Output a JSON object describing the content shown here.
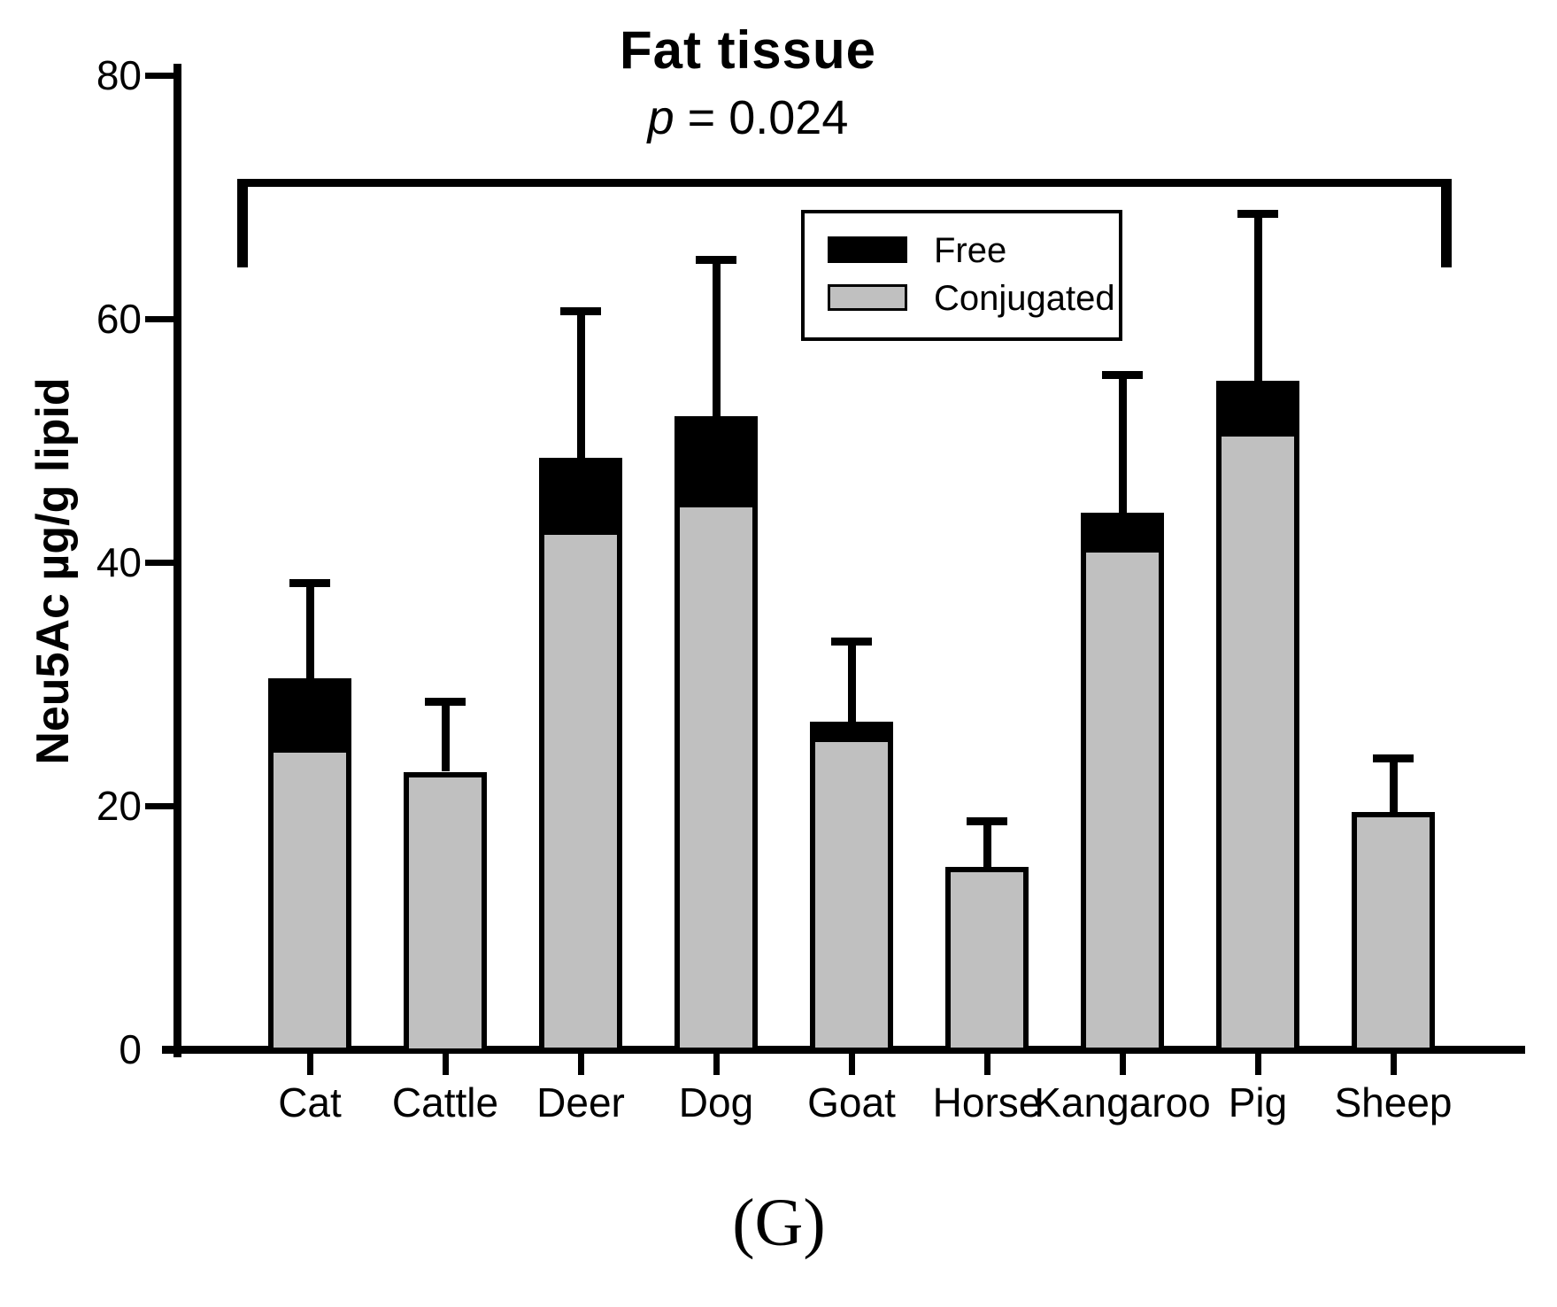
{
  "title": "Fat tissue",
  "subtitle": {
    "p": "p",
    "rest": " = 0.024"
  },
  "caption": "(G)",
  "legend": {
    "items": [
      {
        "label": "Free",
        "color": "#000000"
      },
      {
        "label": "Conjugated",
        "color": "#C0C0C0"
      }
    ],
    "position": "upper center"
  },
  "colors": {
    "free": "#000000",
    "conjugated": "#C0C0C0",
    "axis": "#000000",
    "background": "#FFFFFF"
  },
  "chart_data": {
    "type": "bar",
    "stacked": true,
    "title": "Fat tissue",
    "annotation": "p = 0.024",
    "xlabel": "",
    "ylabel": "Neu5Ac µg/g lipid",
    "ylim": [
      0,
      80
    ],
    "yticks": [
      0,
      20,
      40,
      60,
      80
    ],
    "grid": false,
    "categories": [
      "Cat",
      "Cattle",
      "Deer",
      "Dog",
      "Goat",
      "Horse",
      "Kangaroo",
      "Pig",
      "Sheep"
    ],
    "series": [
      {
        "name": "Conjugated",
        "color": "#C0C0C0",
        "values": [
          24.4,
          22.8,
          42.3,
          44.5,
          25.2,
          15.0,
          40.8,
          50.3,
          19.5
        ]
      },
      {
        "name": "Free",
        "color": "#000000",
        "values": [
          6.1,
          0,
          6.3,
          7.5,
          1.7,
          0,
          3.3,
          4.6,
          0
        ]
      }
    ],
    "totals": [
      30.5,
      22.8,
      48.6,
      52.0,
      26.9,
      15.0,
      44.1,
      54.9,
      19.5
    ],
    "error_bars": {
      "type": "upper SD on stacked total",
      "upper": [
        8.0,
        5.9,
        12.2,
        13.0,
        6.8,
        3.9,
        11.5,
        13.9,
        4.6
      ]
    },
    "significance_bracket": {
      "from": "Cat",
      "to": "Sheep",
      "label": "p = 0.024",
      "y_value": 71.5
    }
  }
}
